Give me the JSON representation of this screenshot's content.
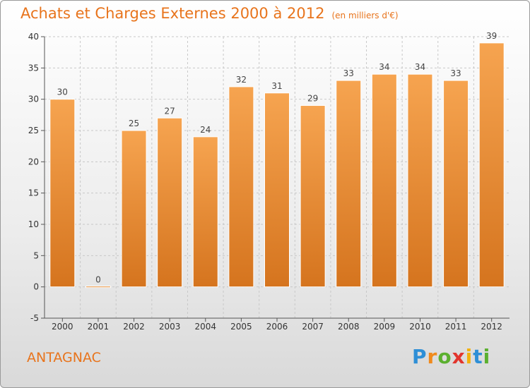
{
  "title": "Achats et Charges Externes 2000 à 2012",
  "unit": "(en milliers d'€)",
  "commune": "ANTAGNAC",
  "logo_letters": [
    {
      "ch": "P",
      "color": "#2e8fd6"
    },
    {
      "ch": "r",
      "color": "#f08a1c"
    },
    {
      "ch": "o",
      "color": "#5bb02f"
    },
    {
      "ch": "x",
      "color": "#e2352d"
    },
    {
      "ch": "i",
      "color": "#f2b10f"
    },
    {
      "ch": "t",
      "color": "#2e8fd6"
    },
    {
      "ch": "i",
      "color": "#5bb02f"
    }
  ],
  "colors": {
    "accent": "#e8741c",
    "bar_top": "#f6a450",
    "bar_bottom": "#d5741e"
  },
  "chart_data": {
    "type": "bar",
    "categories": [
      "2000",
      "2001",
      "2002",
      "2003",
      "2004",
      "2005",
      "2006",
      "2007",
      "2008",
      "2009",
      "2010",
      "2011",
      "2012"
    ],
    "values": [
      30,
      0,
      25,
      27,
      24,
      32,
      31,
      29,
      33,
      34,
      34,
      33,
      39
    ],
    "ylim": [
      -5,
      40
    ],
    "yticks": [
      -5,
      0,
      5,
      10,
      15,
      20,
      25,
      30,
      35,
      40
    ],
    "grid": true
  }
}
